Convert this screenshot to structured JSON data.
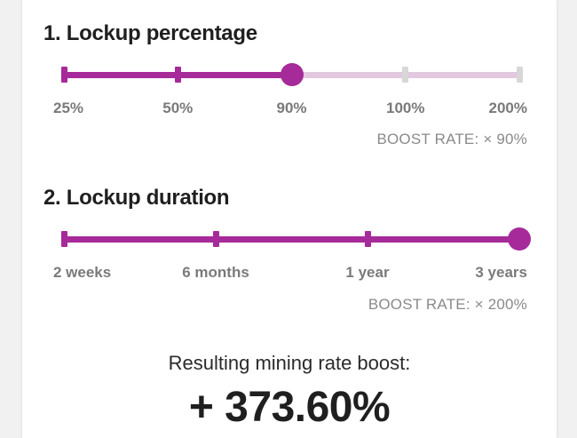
{
  "lockup_percentage": {
    "title": "1. Lockup percentage",
    "options": [
      "25%",
      "50%",
      "90%",
      "100%",
      "200%"
    ],
    "selected_index": 2,
    "boost_rate": "BOOST RATE: × 90%"
  },
  "lockup_duration": {
    "title": "2. Lockup duration",
    "options": [
      "2 weeks",
      "6 months",
      "1 year",
      "3 years"
    ],
    "selected_index": 3,
    "boost_rate": "BOOST RATE: × 200%"
  },
  "result": {
    "label": "Resulting mining rate boost:",
    "value": "+ 373.60%"
  },
  "colors": {
    "accent": "#a62a99",
    "track_inactive": "#e2c9df",
    "tick_inactive": "#d7d7d7"
  }
}
